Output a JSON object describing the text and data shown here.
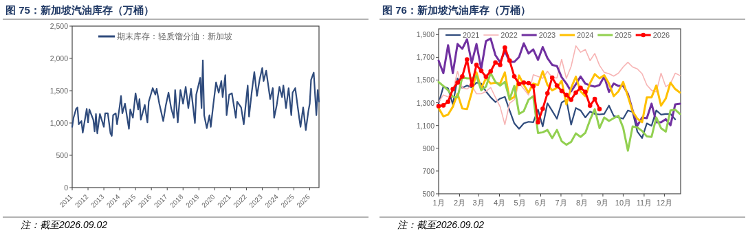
{
  "chart_data": [
    {
      "type": "line",
      "title": "图 75：新加坡汽油库存（万桶）",
      "annotations": [
        "注：截至2026.09.02"
      ],
      "legend": "top left",
      "xlim": [
        "2011-01",
        "2026-08"
      ],
      "xticks": [
        "2011",
        "2012",
        "2013",
        "2014",
        "2015",
        "2016",
        "2017",
        "2018",
        "2019",
        "2020",
        "2021",
        "2022",
        "2023",
        "2024",
        "2025",
        "2026"
      ],
      "ylim": [
        0,
        2500
      ],
      "yticks": [
        0,
        500,
        {
          "value": 1000,
          "label": "1,000"
        },
        {
          "value": 1500,
          "label": "1,500"
        },
        {
          "value": 2000,
          "label": "2,000"
        },
        {
          "value": 2500,
          "label": "2,500"
        }
      ],
      "grid": false,
      "x": [
        "2011-01",
        "2011-02",
        "2011-04",
        "2011-05",
        "2011-06",
        "2011-08",
        "2011-09",
        "2011-12",
        "2012-01",
        "2012-02",
        "2012-05",
        "2012-06",
        "2012-07",
        "2012-08",
        "2012-10",
        "2013-01",
        "2013-02",
        "2013-04",
        "2013-06",
        "2013-07",
        "2013-08",
        "2013-10",
        "2013-11",
        "2014-01",
        "2014-02",
        "2014-03",
        "2014-05",
        "2014-08",
        "2014-09",
        "2014-11",
        "2015-01",
        "2015-03",
        "2015-04",
        "2015-05",
        "2015-08",
        "2015-10",
        "2015-11",
        "2016-02",
        "2016-04",
        "2016-05",
        "2016-07",
        "2016-10",
        "2016-12",
        "2017-02",
        "2017-04",
        "2017-06",
        "2017-07",
        "2017-09",
        "2017-11",
        "2018-01",
        "2018-03",
        "2018-05",
        "2018-07",
        "2018-10",
        "2018-11",
        "2019-02",
        "2019-03",
        "2019-04",
        "2019-05",
        "2019-07",
        "2019-09",
        "2019-10",
        "2019-12",
        "2020-02",
        "2020-04",
        "2020-06",
        "2020-07",
        "2020-09",
        "2020-10",
        "2020-12",
        "2021-02",
        "2021-05",
        "2021-06",
        "2021-09",
        "2021-11",
        "2022-01",
        "2022-02",
        "2022-03",
        "2022-05",
        "2022-07",
        "2022-09",
        "2022-11",
        "2023-01",
        "2023-02",
        "2023-04",
        "2023-07",
        "2023-09",
        "2023-10",
        "2023-12",
        "2024-02",
        "2024-04",
        "2024-05",
        "2024-07",
        "2024-09",
        "2024-11",
        "2024-12",
        "2025-02",
        "2025-05",
        "2025-06",
        "2025-08",
        "2025-10",
        "2025-12",
        "2026-01",
        "2026-02",
        "2026-04",
        "2026-06",
        "2026-07",
        "2026-08"
      ],
      "series": [
        {
          "name": "期末库存：轻质馏分油：新加坡",
          "color": "#2f4b7c",
          "values": [
            940,
            1080,
            1220,
            1240,
            980,
            1030,
            850,
            1220,
            1010,
            1210,
            1050,
            870,
            1140,
            840,
            1140,
            940,
            1150,
            1150,
            840,
            800,
            1120,
            1150,
            980,
            1260,
            1420,
            1150,
            1300,
            910,
            1210,
            1080,
            1460,
            1210,
            1370,
            1050,
            1280,
            1010,
            1330,
            1540,
            1440,
            1530,
            1300,
            1030,
            1280,
            1470,
            1230,
            1080,
            1510,
            1010,
            1510,
            1300,
            1560,
            1230,
            1530,
            1000,
            1440,
            1700,
            1230,
            1970,
            1120,
            920,
            1120,
            940,
            1300,
            1630,
            1470,
            1650,
            1400,
            1740,
            1120,
            1440,
            1460,
            1080,
            1330,
            1240,
            980,
            1390,
            1580,
            1100,
            1470,
            1790,
            1420,
            1670,
            1850,
            1650,
            1810,
            1370,
            1540,
            1080,
            1280,
            1560,
            1400,
            1580,
            1230,
            1540,
            1120,
            1470,
            1540,
            1080,
            940,
            1240,
            890,
            1190,
            1300,
            1670,
            1780,
            1120,
            1510,
            1330
          ]
        }
      ]
    },
    {
      "type": "line",
      "title": "图 76：新加坡汽油库存（万桶）",
      "annotations": [
        "注：截至2026.09.02"
      ],
      "legend": "top",
      "xlim": [
        "--01-01",
        "--12-25"
      ],
      "xticks": [
        {
          "value": "--01-01",
          "label": "1月"
        },
        {
          "value": "--02-01",
          "label": "2月"
        },
        {
          "value": "--03-01",
          "label": "3月"
        },
        {
          "value": "--04-01",
          "label": "4月"
        },
        {
          "value": "--05-01",
          "label": "5月"
        },
        {
          "value": "--06-01",
          "label": "6月"
        },
        {
          "value": "--07-01",
          "label": "7月"
        },
        {
          "value": "--08-01",
          "label": "8月"
        },
        {
          "value": "--09-01",
          "label": "9月"
        },
        {
          "value": "--10-01",
          "label": "10月"
        },
        {
          "value": "--11-01",
          "label": "11月"
        },
        {
          "value": "--12-01",
          "label": "12月"
        }
      ],
      "ylim": [
        500,
        1950
      ],
      "yticks": [
        500,
        700,
        900,
        {
          "value": 1100,
          "label": "1,100"
        },
        {
          "value": 1300,
          "label": "1,300"
        },
        {
          "value": 1500,
          "label": "1,500"
        },
        {
          "value": 1700,
          "label": "1,700"
        },
        {
          "value": 1900,
          "label": "1,900"
        }
      ],
      "grid": false,
      "x": [
        "--01-01",
        "--01-08",
        "--01-15",
        "--01-22",
        "--01-29",
        "--02-05",
        "--02-12",
        "--02-19",
        "--02-26",
        "--03-05",
        "--03-12",
        "--03-19",
        "--03-26",
        "--04-02",
        "--04-09",
        "--04-16",
        "--04-23",
        "--04-30",
        "--05-07",
        "--05-14",
        "--05-21",
        "--05-28",
        "--06-04",
        "--06-11",
        "--06-18",
        "--06-25",
        "--07-02",
        "--07-09",
        "--07-16",
        "--07-23",
        "--07-30",
        "--08-06",
        "--08-13",
        "--08-20",
        "--08-27",
        "--09-03",
        "--09-10",
        "--09-17",
        "--09-24",
        "--10-01",
        "--10-08",
        "--10-15",
        "--10-22",
        "--10-29",
        "--11-05",
        "--11-12",
        "--11-19",
        "--11-26",
        "--12-03",
        "--12-10",
        "--12-17",
        "--12-24"
      ],
      "series": [
        {
          "name": "2021",
          "color": "#2f4b7c",
          "values": [
            1296,
            1442,
            1427,
            1286,
            1515,
            1431,
            1452,
            1435,
            1477,
            1469,
            1400,
            1348,
            1306,
            1337,
            1352,
            1233,
            1119,
            1071,
            1119,
            1133,
            1129,
            1240,
            1092,
            1296,
            1229,
            1160,
            1302,
            1327,
            1108,
            1254,
            1233,
            1171,
            1223,
            1202,
            1198,
            1202,
            1275,
            1185,
            1171,
            1160,
            1233,
            1219,
            1046,
            990,
            1119,
            1098,
            1233,
            1196,
            1202,
            1202,
            1154,
            null
          ]
        },
        {
          "name": "2022",
          "color": "#f7b4b4",
          "values": [
            1306,
            1369,
            1352,
            1400,
            1577,
            1431,
            1421,
            1452,
            1379,
            1379,
            1400,
            1435,
            1348,
            1265,
            1108,
            1296,
            1327,
            1473,
            1421,
            1369,
            1546,
            1531,
            1515,
            1577,
            1521,
            1519,
            1681,
            1515,
            1619,
            1800,
            1744,
            1769,
            1671,
            1733,
            1629,
            1567,
            1556,
            1535,
            1560,
            1615,
            1656,
            1615,
            1598,
            1556,
            1456,
            1410,
            1396,
            1560,
            1442,
            1469,
            1560,
            1540
          ]
        },
        {
          "name": "2023",
          "color": "#7030a0",
          "values": [
            1671,
            1560,
            1806,
            1560,
            1817,
            1775,
            1858,
            1650,
            1817,
            1598,
            1842,
            1865,
            1719,
            1656,
            1754,
            1660,
            1660,
            1702,
            1823,
            1733,
            1769,
            1677,
            1790,
            1692,
            1633,
            1623,
            1525,
            1469,
            1400,
            1463,
            1531,
            1469,
            1452,
            1442,
            1456,
            1531,
            1396,
            1469,
            1448,
            1448,
            1379,
            1233,
            1098,
            1171,
            1165,
            1292,
            1129,
            1129,
            1156,
            1102,
            1286,
            1292
          ]
        },
        {
          "name": "2024",
          "color": "#ffc000",
          "values": [
            1254,
            1181,
            1196,
            1265,
            1379,
            1250,
            1244,
            1390,
            1567,
            1427,
            1515,
            1469,
            1477,
            1469,
            1567,
            1327,
            1352,
            1540,
            1456,
            1390,
            1469,
            1456,
            1577,
            1456,
            1410,
            1431,
            1494,
            1286,
            1431,
            1529,
            1400,
            1358,
            1473,
            1552,
            1515,
            1542,
            1469,
            1358,
            1400,
            1483,
            1358,
            1223,
            1160,
            1129,
            1348,
            1348,
            1452,
            1275,
            1337,
            1477,
            1421,
            1390
          ]
        },
        {
          "name": "2025",
          "color": "#92d050",
          "values": [
            1483,
            1448,
            1410,
            1352,
            1348,
            1525,
            1515,
            1515,
            1535,
            1410,
            1442,
            1560,
            1483,
            1452,
            1483,
            1331,
            1448,
            1202,
            1227,
            1327,
            1358,
            1035,
            1040,
            1061,
            990,
            1061,
            962,
            931,
            956,
            1031,
            1000,
            1035,
            1150,
            1244,
            1077,
            1171,
            1140,
            1165,
            1185,
            1081,
            879,
            1092,
            1083,
            1052,
            1004,
            1000,
            1171,
            1077,
            1046,
            1233,
            1240,
            1202
          ]
        },
        {
          "name": "2026",
          "color": "#ff0000",
          "marker": "circle",
          "values": [
            1271,
            1277,
            1310,
            1420,
            1477,
            1531,
            1681,
            1456,
            1633,
            1581,
            1529,
            1577,
            1654,
            1633,
            1785,
            1671,
            1531,
            1467,
            1477,
            1473,
            1446,
            1129,
            1248,
            1383,
            1521,
            1452,
            1404,
            1369,
            1327,
            1390,
            1431,
            1396,
            1275,
            1333,
            1244,
            null,
            null,
            null,
            null,
            null,
            null,
            null,
            null,
            null,
            null,
            null,
            null,
            null,
            null,
            null,
            null,
            null
          ]
        }
      ]
    }
  ]
}
